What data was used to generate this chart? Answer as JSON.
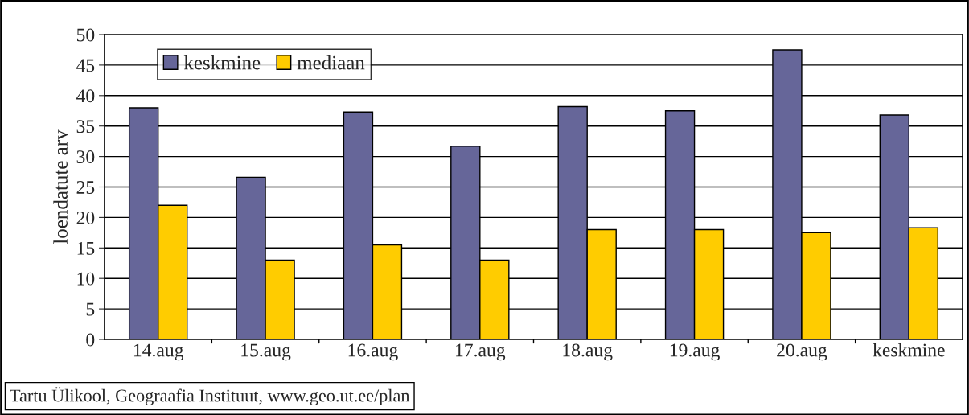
{
  "chart_data": {
    "type": "bar",
    "ylabel": "loendatute arv",
    "categories": [
      "14.aug",
      "15.aug",
      "16.aug",
      "17.aug",
      "18.aug",
      "19.aug",
      "20.aug",
      "keskmine"
    ],
    "series": [
      {
        "name": "keskmine",
        "color": "#666699",
        "values": [
          38,
          26.6,
          37.3,
          31.7,
          38.2,
          37.5,
          47.5,
          36.8
        ]
      },
      {
        "name": "mediaan",
        "color": "#ffcc00",
        "values": [
          22,
          13,
          15.5,
          13,
          18,
          18,
          17.5,
          18.3
        ]
      }
    ],
    "ylim": [
      0,
      50
    ],
    "yticks": [
      0,
      5,
      10,
      15,
      20,
      25,
      30,
      35,
      40,
      45,
      50
    ],
    "grid": "y",
    "legend": "top left",
    "annotations": [
      "Tartu Ülikool, Geograafia Instituut, www.geo.ut.ee/plan"
    ]
  }
}
